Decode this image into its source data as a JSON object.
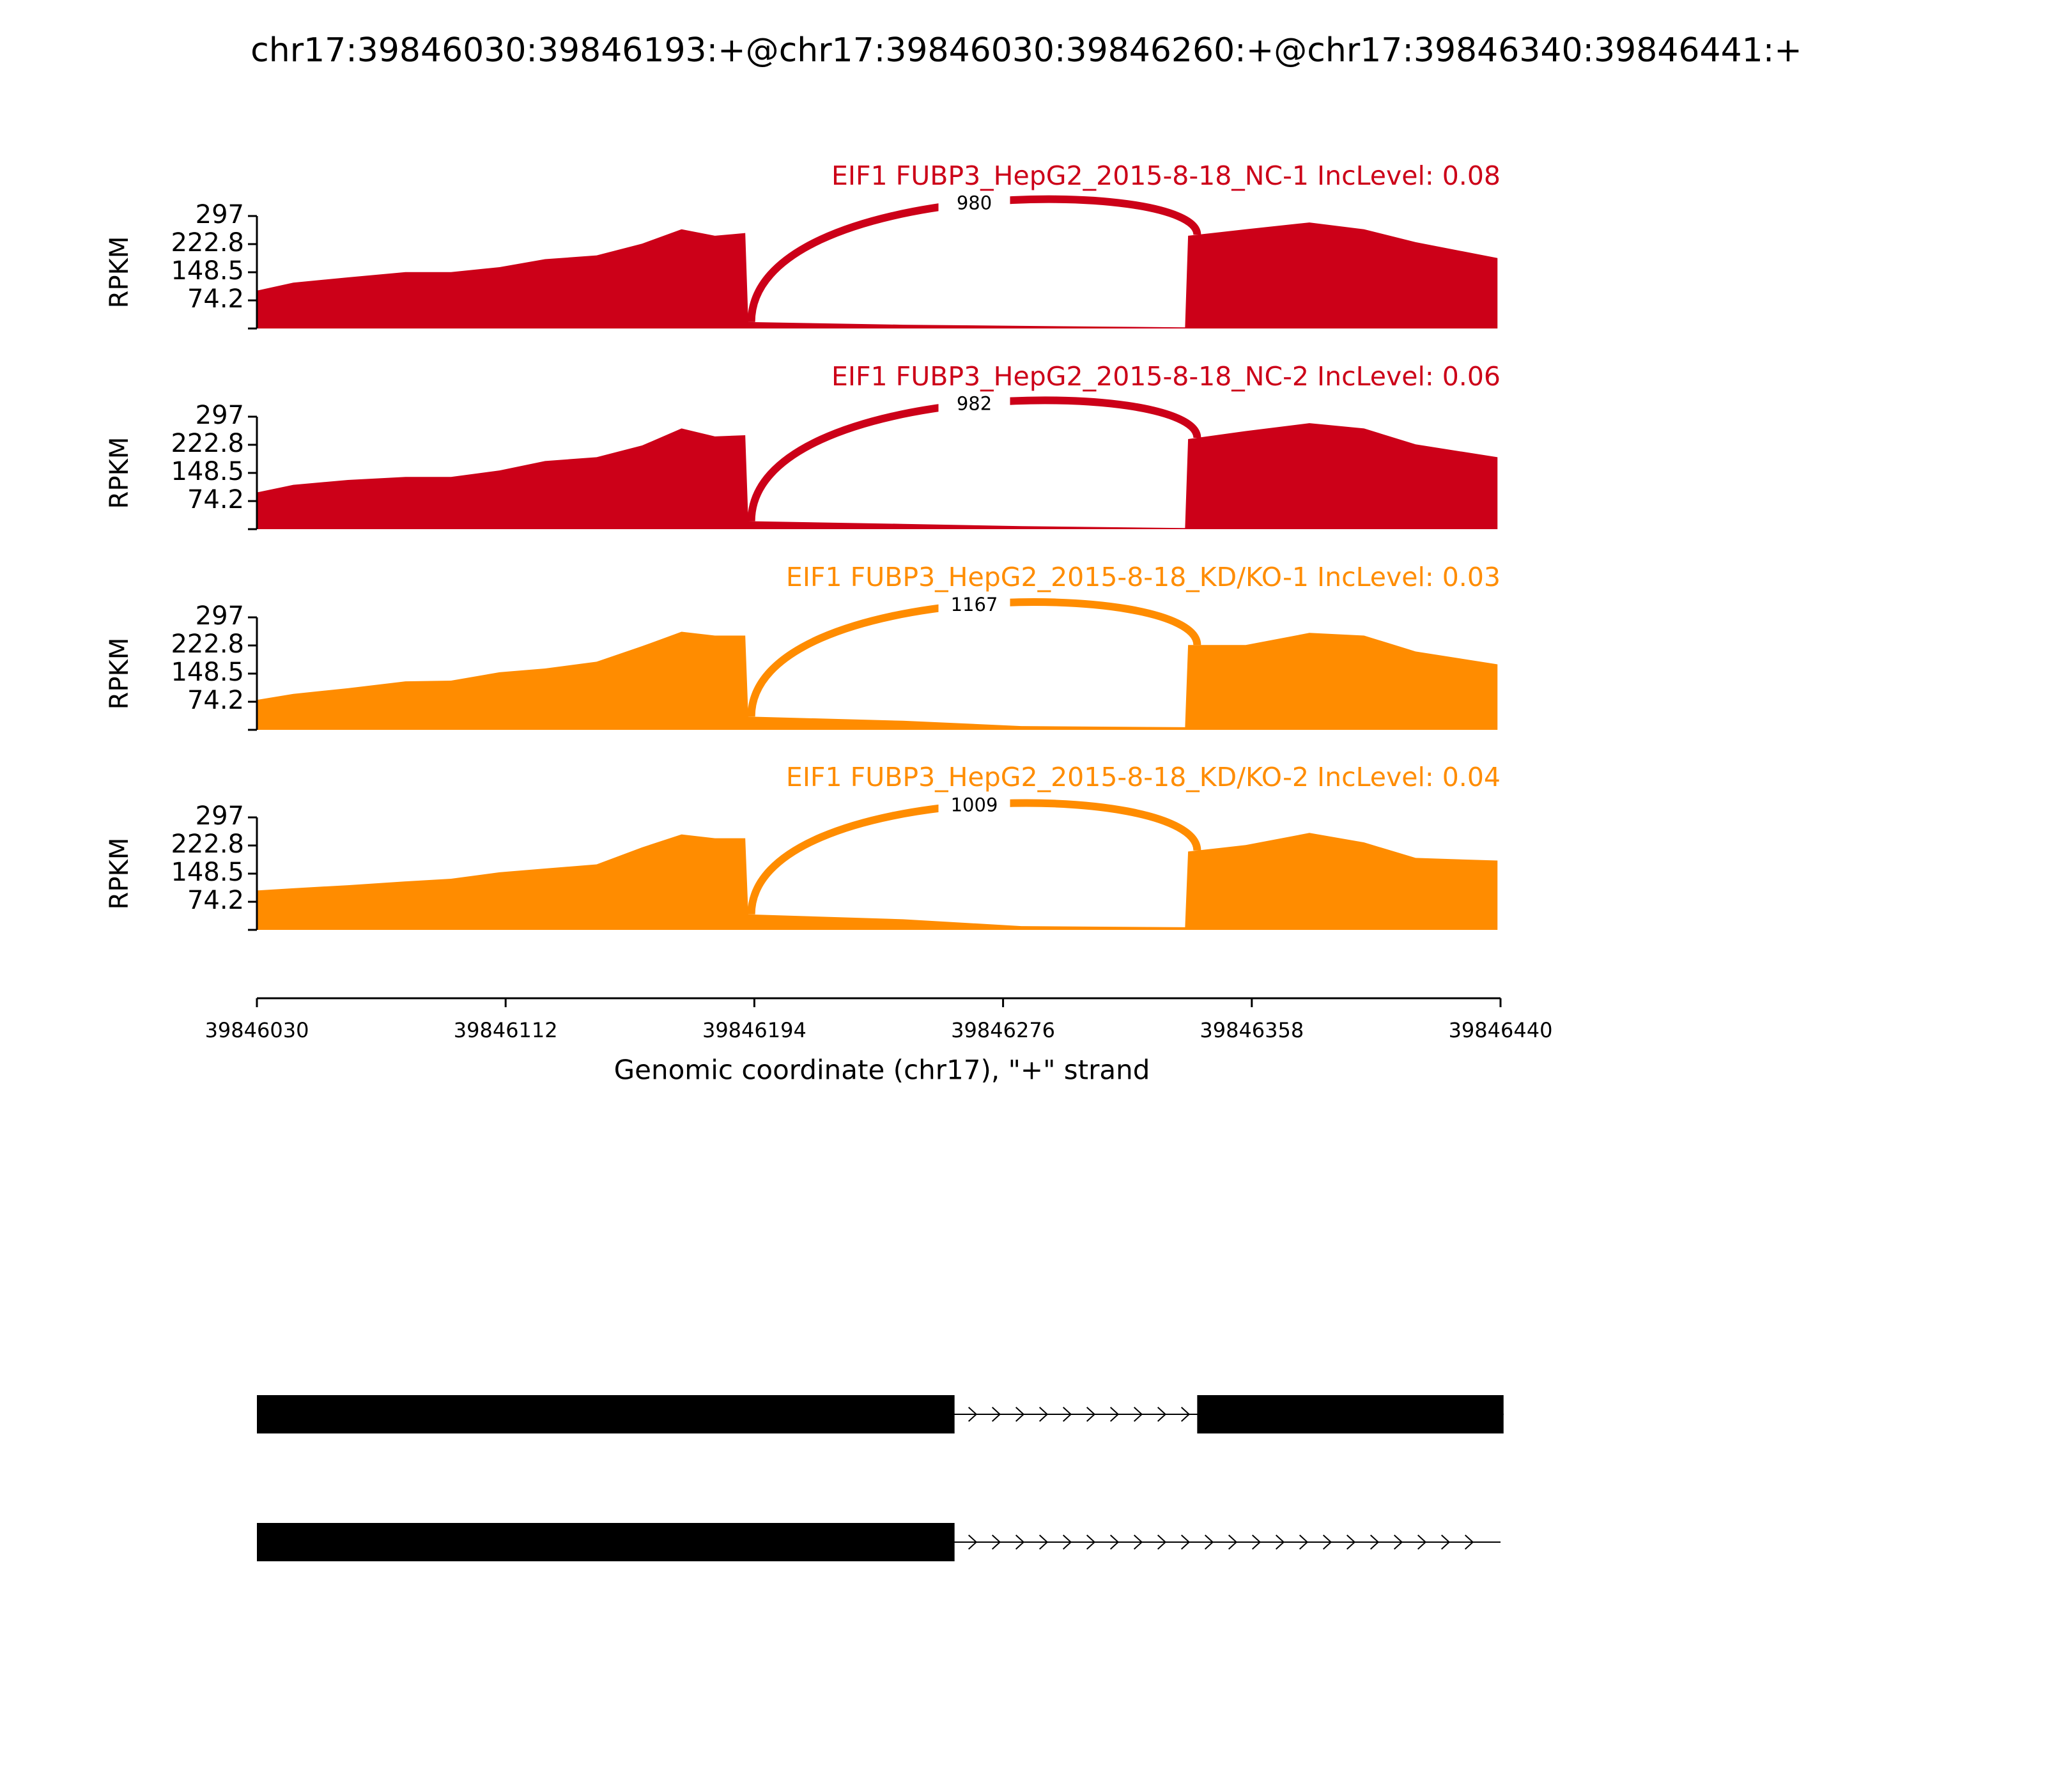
{
  "chart_data": {
    "type": "sashimi",
    "title": "chr17:39846030:39846193:+@chr17:39846030:39846260:+@chr17:39846340:39846441:+",
    "ylabel": "RPKM",
    "xlabel": "Genomic coordinate (chr17), \"+\" strand",
    "xlim": [
      39846030,
      39846440
    ],
    "xticks": [
      39846030,
      39846112,
      39846194,
      39846276,
      39846358,
      39846440
    ],
    "x": [
      39846030,
      39846042,
      39846060,
      39846079,
      39846094,
      39846110,
      39846125,
      39846142,
      39846157,
      39846170,
      39846181,
      39846191,
      39846192,
      39846243,
      39846282,
      39846336,
      39846337,
      39846356,
      39846377,
      39846395,
      39846412,
      39846439
    ],
    "tracks": [
      {
        "name": "EIF1 FUBP3_HepG2_2015-8-18_NC-1 IncLevel: 0.08",
        "color": "#cc0018",
        "ylim": [
          0,
          297
        ],
        "yticks": [
          297,
          222.8,
          148.5,
          74.2
        ],
        "values": [
          100,
          121,
          135,
          149,
          149,
          162,
          183,
          193,
          224,
          262,
          245,
          252,
          17,
          10,
          7,
          3,
          245,
          262,
          280,
          262,
          228,
          186
        ],
        "junction": {
          "start": 39846193,
          "end": 39846340,
          "count": 980
        }
      },
      {
        "name": "EIF1 FUBP3_HepG2_2015-8-18_NC-2 IncLevel: 0.06",
        "color": "#cc0018",
        "ylim": [
          0,
          297
        ],
        "yticks": [
          297,
          222.8,
          148.5,
          74.2
        ],
        "values": [
          97,
          117,
          130,
          138,
          138,
          155,
          180,
          190,
          221,
          266,
          245,
          248,
          21,
          14,
          8,
          3,
          238,
          259,
          280,
          266,
          224,
          190
        ],
        "junction": {
          "start": 39846193,
          "end": 39846340,
          "count": 982
        }
      },
      {
        "name": "EIF1 FUBP3_HepG2_2015-8-18_KD/KO-1 IncLevel: 0.03",
        "color": "#ff8c00",
        "ylim": [
          0,
          297
        ],
        "yticks": [
          297,
          222.8,
          148.5,
          74.2
        ],
        "values": [
          79,
          95,
          110,
          128,
          130,
          152,
          162,
          180,
          221,
          259,
          249,
          249,
          35,
          24,
          10,
          7,
          224,
          224,
          256,
          249,
          207,
          173
        ],
        "junction": {
          "start": 39846193,
          "end": 39846340,
          "count": 1167
        }
      },
      {
        "name": "EIF1 FUBP3_HepG2_2015-8-18_KD/KO-2 IncLevel: 0.04",
        "color": "#ff8c00",
        "ylim": [
          0,
          297
        ],
        "yticks": [
          297,
          222.8,
          148.5,
          74.2
        ],
        "values": [
          104,
          110,
          118,
          128,
          135,
          152,
          162,
          173,
          218,
          252,
          242,
          242,
          41,
          28,
          10,
          7,
          207,
          224,
          256,
          231,
          190,
          183
        ],
        "junction": {
          "start": 39846193,
          "end": 39846340,
          "count": 1009
        }
      }
    ],
    "transcripts": [
      {
        "exons": [
          [
            39846030,
            39846260
          ],
          [
            39846340,
            39846441
          ]
        ]
      },
      {
        "exons": [
          [
            39846030,
            39846260
          ]
        ]
      }
    ]
  }
}
